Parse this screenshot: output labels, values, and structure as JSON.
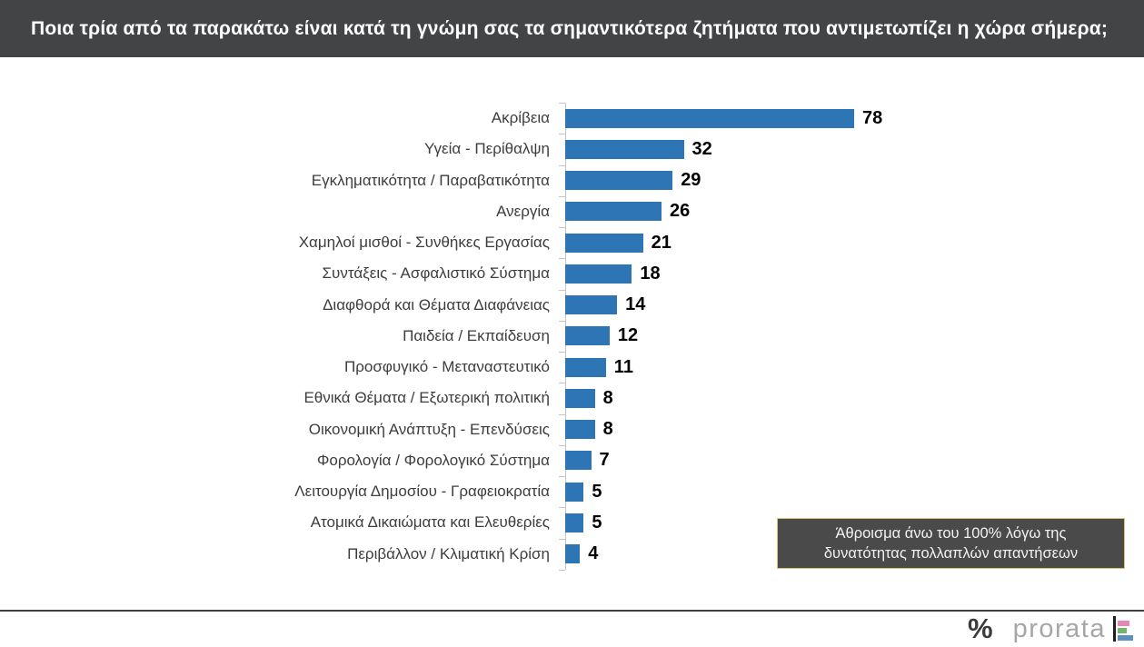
{
  "header": {
    "title": "Ποια τρία από τα παρακάτω είναι κατά τη γνώμη σας τα σημαντικότερα ζητήματα που αντιμετωπίζει η χώρα σήμερα;"
  },
  "chart_data": {
    "type": "bar",
    "orientation": "horizontal",
    "title": "Ποια τρία από τα παρακάτω είναι κατά τη γνώμη σας τα σημαντικότερα ζητήματα που αντιμετωπίζει η χώρα σήμερα;",
    "categories": [
      "Ακρίβεια",
      "Υγεία - Περίθαλψη",
      "Εγκληματικότητα / Παραβατικότητα",
      "Ανεργία",
      "Χαμηλοί μισθοί - Συνθήκες Εργασίας",
      "Συντάξεις - Ασφαλιστικό Σύστημα",
      "Διαφθορά και Θέματα Διαφάνειας",
      "Παιδεία / Εκπαίδευση",
      "Προσφυγικό - Μεταναστευτικό",
      "Εθνικά Θέματα / Εξωτερική πολιτική",
      "Οικονομική Ανάπτυξη - Επενδύσεις",
      "Φορολογία / Φορολογικό Σύστημα",
      "Λειτουργία Δημοσίου - Γραφειοκρατία",
      "Ατομικά Δικαιώματα και Ελευθερίες",
      "Περιβάλλον / Κλιματική Κρίση"
    ],
    "values": [
      78,
      32,
      29,
      26,
      21,
      18,
      14,
      12,
      11,
      8,
      8,
      7,
      5,
      5,
      4
    ],
    "xlim": [
      0,
      78
    ],
    "grid": false,
    "legend": false,
    "value_labels": "end-of-bar",
    "annotation": "Άθροισμα άνω του 100% λόγω της δυνατότητας πολλαπλών απαντήσεων"
  },
  "note": {
    "line1": "Άθροισμα άνω του 100% λόγω της",
    "line2": "δυνατότητας πολλαπλών απαντήσεων"
  },
  "footer": {
    "percent_symbol": "%",
    "brand": "prorata"
  },
  "colors": {
    "bar": "#2e75b6",
    "header_bg": "#424445",
    "header_text": "#ffffff",
    "category_label": "#3d3d3d",
    "value_label": "#000000",
    "axis": "#c4c7ca",
    "note_bg": "#4a4a4b",
    "note_border": "#d9c87c",
    "note_text": "#f2f2f2",
    "footer_line": "#3f4041",
    "logo_percent": "#3a3a3a",
    "logo_text": "#a6a6a6",
    "logo_pink": "#e887b4",
    "logo_green": "#72b66e",
    "logo_blue": "#5d8fc2"
  }
}
